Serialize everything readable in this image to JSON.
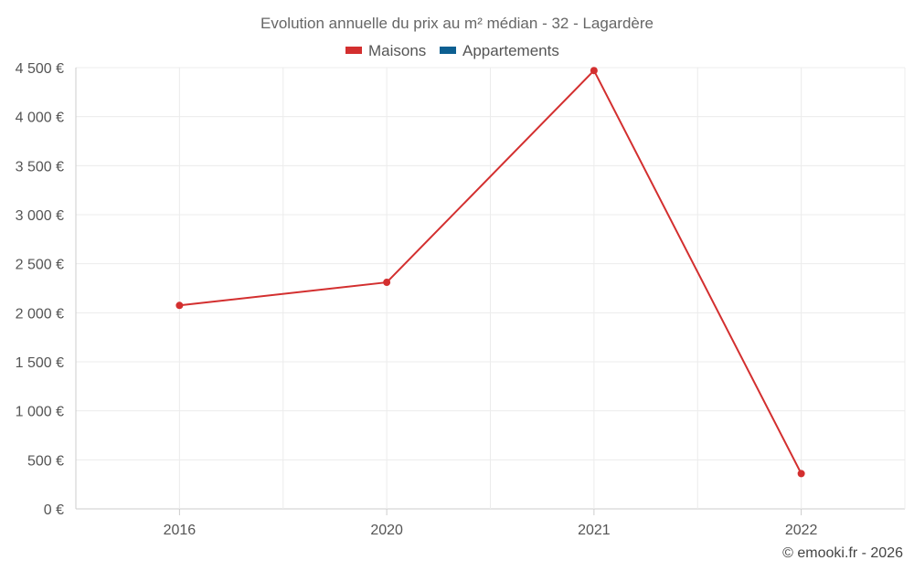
{
  "chart_data": {
    "type": "line",
    "title": "Evolution annuelle du prix au m² médian - 32 - Lagardère",
    "categories": [
      "2016",
      "2020",
      "2021",
      "2022"
    ],
    "series": [
      {
        "name": "Maisons",
        "color": "#d32f2f",
        "values": [
          2075,
          2310,
          4470,
          360
        ]
      },
      {
        "name": "Appartements",
        "color": "#0d5f91",
        "values": [
          null,
          null,
          null,
          null
        ]
      }
    ],
    "yticks": [
      "0 €",
      "500 €",
      "1 000 €",
      "1 500 €",
      "2 000 €",
      "2 500 €",
      "3 000 €",
      "3 500 €",
      "4 000 €",
      "4 500 €"
    ],
    "ylim": [
      0,
      4500
    ],
    "xlabel": "",
    "ylabel": "",
    "grid": true,
    "legend_position": "top-center"
  },
  "credit": "© emooki.fr - 2026"
}
